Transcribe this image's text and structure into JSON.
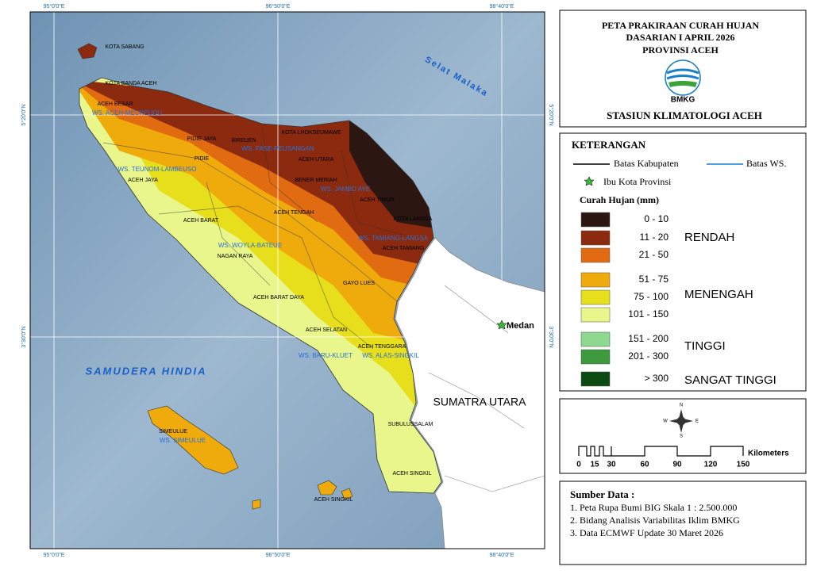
{
  "map": {
    "grid": {
      "lon": [
        "95°0'0\"E",
        "96°50'0\"E",
        "98°40'0\"E"
      ],
      "lat": [
        "5°20'0\"N",
        "3°30'0\"N"
      ]
    },
    "regions": [
      "KOTA SABANG",
      "KOTA BANDA ACEH",
      "ACEH BESAR",
      "PIDIE JAYA",
      "BIREUEN",
      "KOTA LHOKSEUMAWE",
      "PIDIE",
      "ACEH UTARA",
      "ACEH JAYA",
      "BENER MERIAH",
      "ACEH TIMUR",
      "KOTA LANGSA",
      "ACEH TENGAH",
      "ACEH BARAT",
      "NAGAN RAYA",
      "ACEH TAMIANG",
      "GAYO LUES",
      "ACEH BARAT DAYA",
      "ACEH SELATAN",
      "ACEH TENGGARA",
      "SUBULUSSALAM",
      "SIMEULUE",
      "ACEH SINGKIL",
      "ACEH SINGKIL"
    ],
    "watersheds": [
      "WS. ACEH-MEUREUDU",
      "WS. PASE-PEUSANGAN",
      "WS. TEUNOM-LAMBEUSO",
      "WS. JAMBO AYE",
      "WS. TAMIANG-LANGSA",
      "WS. WOYLA-BATEUE",
      "WS. BARU-KLUET",
      "WS. ALAS-SINGKIL",
      "WS. SIMEULUE"
    ],
    "seas": [
      "Selat Malaka",
      "SAMUDERA HINDIA"
    ],
    "province": "SUMATRA UTARA",
    "capital": "Medan"
  },
  "title": {
    "lines": [
      "PETA PRAKIRAAN CURAH HUJAN",
      "DASARIAN I APRIL 2026",
      "PROVINSI ACEH"
    ],
    "logo": "BMKG",
    "station": "STASIUN KLIMATOLOGI ACEH"
  },
  "legend": {
    "heading": "KETERANGAN",
    "boundaries": [
      "Batas Kabupaten",
      "Batas WS."
    ],
    "capital": "Ibu Kota Provinsi",
    "rain_title": "Curah Hujan (mm)",
    "classes": [
      {
        "range": "0 - 10",
        "color": "#2b1611"
      },
      {
        "range": "11 - 20",
        "color": "#8b2a0e"
      },
      {
        "range": "21 - 50",
        "color": "#e06b10"
      },
      {
        "range": "51 - 75",
        "color": "#efaa0c"
      },
      {
        "range": "75 - 100",
        "color": "#e8df1c"
      },
      {
        "range": "101 - 150",
        "color": "#e8f68c"
      },
      {
        "range": "151 - 200",
        "color": "#8fd88f"
      },
      {
        "range": "201 - 300",
        "color": "#3d9a3d"
      },
      {
        "range": "> 300",
        "color": "#0b4a12"
      }
    ],
    "groups": [
      "RENDAH",
      "MENENGAH",
      "TINGGI",
      "SANGAT TINGGI"
    ]
  },
  "compass": [
    "N",
    "E",
    "S",
    "W"
  ],
  "scale": {
    "ticks": [
      "0",
      "15",
      "30",
      "60",
      "90",
      "120",
      "150"
    ],
    "unit": "Kilometers"
  },
  "sources": {
    "heading": "Sumber Data :",
    "items": [
      "1. Peta Rupa Bumi BIG Skala 1 : 2.500.000",
      "2. Bidang Analisis Variabilitas Iklim BMKG",
      "3. Data ECMWF Update 30 Maret 2026"
    ]
  }
}
